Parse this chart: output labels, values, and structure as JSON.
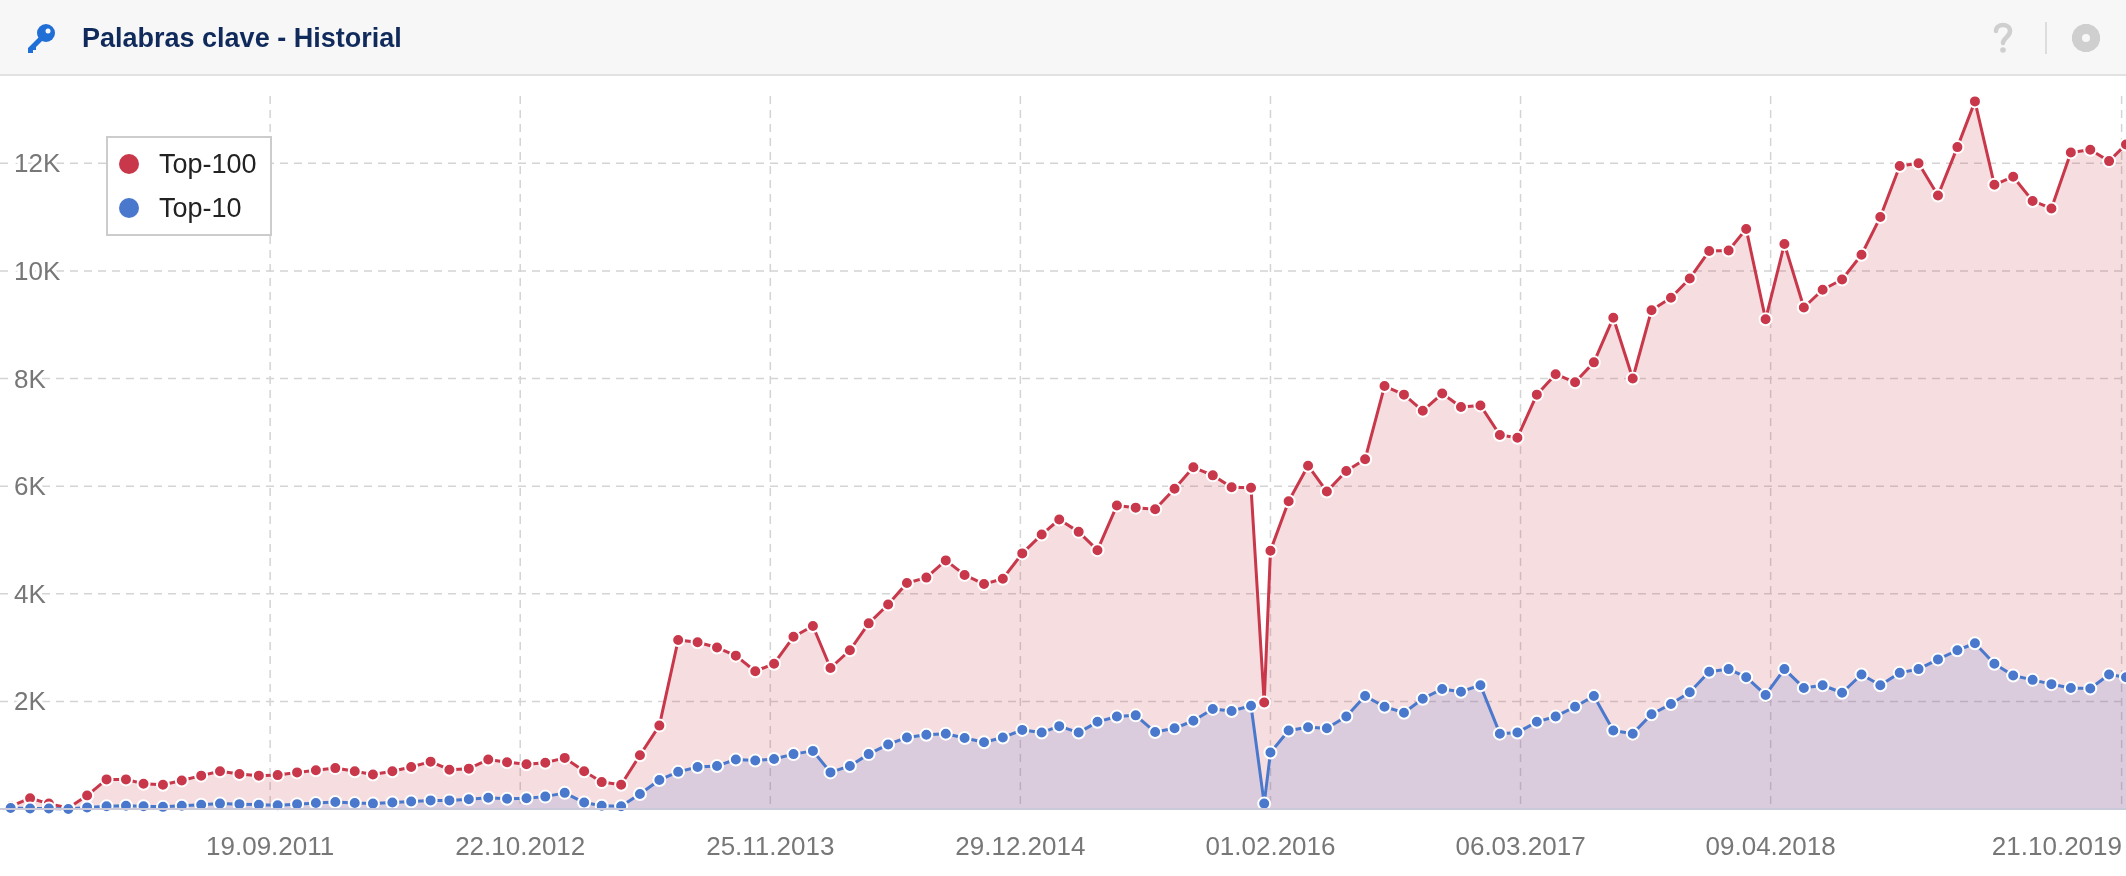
{
  "chart_data": {
    "type": "area",
    "title": "Palabras clave - Historial",
    "x": [
      "2010-08-01",
      "2010-09-01",
      "2010-10-01",
      "2010-11-01",
      "2010-12-01",
      "2011-01-01",
      "2011-02-01",
      "2011-03-01",
      "2011-04-01",
      "2011-05-01",
      "2011-06-01",
      "2011-07-01",
      "2011-08-01",
      "2011-09-01",
      "2011-10-01",
      "2011-11-01",
      "2011-12-01",
      "2012-01-01",
      "2012-02-01",
      "2012-03-01",
      "2012-04-01",
      "2012-05-01",
      "2012-06-01",
      "2012-07-01",
      "2012-08-01",
      "2012-09-01",
      "2012-10-01",
      "2012-11-01",
      "2012-12-01",
      "2013-01-01",
      "2013-02-01",
      "2013-03-01",
      "2013-04-01",
      "2013-05-01",
      "2013-06-01",
      "2013-07-01",
      "2013-08-01",
      "2013-09-01",
      "2013-10-01",
      "2013-11-01",
      "2013-12-01",
      "2014-01-01",
      "2014-02-01",
      "2014-03-01",
      "2014-04-01",
      "2014-05-01",
      "2014-06-01",
      "2014-07-01",
      "2014-08-01",
      "2014-09-01",
      "2014-10-01",
      "2014-11-01",
      "2014-12-01",
      "2015-01-01",
      "2015-02-01",
      "2015-03-01",
      "2015-04-01",
      "2015-05-01",
      "2015-06-01",
      "2015-07-01",
      "2015-08-01",
      "2015-09-01",
      "2015-10-01",
      "2015-11-01",
      "2015-12-01",
      "2016-01-01",
      "2016-01-22",
      "2016-02-01",
      "2016-03-01",
      "2016-04-01",
      "2016-05-01",
      "2016-06-01",
      "2016-07-01",
      "2016-08-01",
      "2016-09-01",
      "2016-10-01",
      "2016-11-01",
      "2016-12-01",
      "2017-01-01",
      "2017-02-01",
      "2017-03-01",
      "2017-04-01",
      "2017-05-01",
      "2017-06-01",
      "2017-07-01",
      "2017-08-01",
      "2017-09-01",
      "2017-10-01",
      "2017-11-01",
      "2017-12-01",
      "2018-01-01",
      "2018-02-01",
      "2018-03-01",
      "2018-04-01",
      "2018-05-01",
      "2018-06-01",
      "2018-07-01",
      "2018-08-01",
      "2018-09-01",
      "2018-10-01",
      "2018-11-01",
      "2018-12-01",
      "2019-01-01",
      "2019-02-01",
      "2019-03-01",
      "2019-04-01",
      "2019-05-01",
      "2019-06-01",
      "2019-07-01",
      "2019-08-01",
      "2019-09-01",
      "2019-10-01",
      "2019-10-28"
    ],
    "series": [
      {
        "name": "Top-100",
        "color": "#c8374a",
        "values": [
          50,
          200,
          100,
          20,
          250,
          550,
          550,
          470,
          450,
          530,
          620,
          700,
          650,
          620,
          630,
          680,
          720,
          760,
          700,
          640,
          700,
          780,
          880,
          730,
          750,
          920,
          870,
          830,
          860,
          950,
          700,
          500,
          450,
          1000,
          1550,
          3140,
          3100,
          3000,
          2850,
          2560,
          2700,
          3200,
          3400,
          2620,
          2950,
          3450,
          3800,
          4200,
          4300,
          4620,
          4350,
          4180,
          4280,
          4750,
          5100,
          5380,
          5150,
          4810,
          5640,
          5600,
          5570,
          5950,
          6350,
          6200,
          5980,
          5970,
          1980,
          4800,
          5720,
          6380,
          5900,
          6280,
          6500,
          7860,
          7700,
          7400,
          7720,
          7470,
          7500,
          6950,
          6900,
          7700,
          8080,
          7930,
          8300,
          9130,
          8000,
          9270,
          9500,
          9860,
          10370,
          10380,
          10780,
          9100,
          10500,
          9320,
          9650,
          9840,
          10300,
          11000,
          11950,
          12000,
          11400,
          12300,
          13150,
          11600,
          11750,
          11300,
          11160,
          12200,
          12250,
          12040,
          12350
        ]
      },
      {
        "name": "Top-10",
        "color": "#4a78cc",
        "values": [
          20,
          10,
          10,
          0,
          30,
          50,
          60,
          50,
          40,
          60,
          80,
          100,
          90,
          80,
          70,
          90,
          110,
          130,
          110,
          100,
          120,
          140,
          160,
          160,
          180,
          210,
          190,
          200,
          230,
          300,
          120,
          60,
          50,
          280,
          540,
          690,
          780,
          800,
          920,
          900,
          930,
          1020,
          1080,
          680,
          800,
          1020,
          1200,
          1330,
          1380,
          1400,
          1320,
          1240,
          1330,
          1470,
          1420,
          1540,
          1420,
          1620,
          1720,
          1740,
          1430,
          1500,
          1640,
          1860,
          1820,
          1920,
          100,
          1050,
          1460,
          1520,
          1500,
          1720,
          2100,
          1900,
          1790,
          2050,
          2230,
          2180,
          2300,
          1400,
          1420,
          1620,
          1720,
          1900,
          2100,
          1460,
          1400,
          1760,
          1950,
          2170,
          2550,
          2600,
          2450,
          2120,
          2600,
          2250,
          2300,
          2160,
          2500,
          2300,
          2530,
          2600,
          2780,
          2950,
          3080,
          2700,
          2480,
          2400,
          2320,
          2250,
          2240,
          2500,
          2450
        ]
      }
    ],
    "xlim": [
      "2010-07-15",
      "2019-10-28"
    ],
    "xticks": [
      {
        "value": "2011-09-19",
        "label": "19.09.2011"
      },
      {
        "value": "2012-10-22",
        "label": "22.10.2012"
      },
      {
        "value": "2013-11-25",
        "label": "25.11.2013"
      },
      {
        "value": "2014-12-29",
        "label": "29.12.2014"
      },
      {
        "value": "2016-02-01",
        "label": "01.02.2016"
      },
      {
        "value": "2017-03-06",
        "label": "06.03.2017"
      },
      {
        "value": "2018-04-09",
        "label": "09.04.2018"
      },
      {
        "value": "2019-10-21",
        "label": "21.10.2019"
      }
    ],
    "ylim": [
      0,
      13250
    ],
    "yticks": [
      {
        "value": 2000,
        "label": "2K"
      },
      {
        "value": 4000,
        "label": "4K"
      },
      {
        "value": 6000,
        "label": "6K"
      },
      {
        "value": 8000,
        "label": "8K"
      },
      {
        "value": 10000,
        "label": "10K"
      },
      {
        "value": 12000,
        "label": "12K"
      }
    ],
    "grid": true,
    "legend": "top left",
    "marker": "circle"
  }
}
